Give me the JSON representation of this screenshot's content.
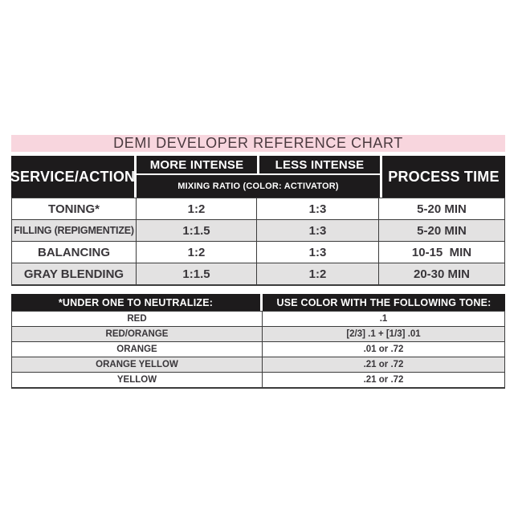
{
  "colors": {
    "pink_banner": "#f8d6de",
    "title_text": "#4b3a3f",
    "header_bg": "#1d1b1c",
    "header_text": "#ffffff",
    "row_alt_gray": "#e3e2e2",
    "body_text": "#39363a",
    "border": "#3c3c3c"
  },
  "chart_data": [
    {
      "type": "table",
      "title": "DEMI DEVELOPER REFERENCE CHART",
      "header": {
        "service_action": "SERVICE/ACTION",
        "more_intense": "MORE INTENSE",
        "less_intense": "LESS INTENSE",
        "mixing_ratio": "MIXING RATIO (COLOR: ACTIVATOR)",
        "process_time": "PROCESS TIME"
      },
      "rows": [
        {
          "service": "TONING*",
          "more_intense": "1:2",
          "less_intense": "1:3",
          "process_time": "5-20 MIN"
        },
        {
          "service": "FILLING (REPIGMENTIZE)",
          "more_intense": "1:1.5",
          "less_intense": "1:3",
          "process_time": "5-20 MIN"
        },
        {
          "service": "BALANCING",
          "more_intense": "1:2",
          "less_intense": "1:3",
          "process_time": "10-15  MIN"
        },
        {
          "service": "GRAY BLENDING",
          "more_intense": "1:1.5",
          "less_intense": "1:2",
          "process_time": "20-30 MIN"
        }
      ]
    },
    {
      "type": "table",
      "header": {
        "neutralize": "*UNDER ONE TO NEUTRALIZE:",
        "use_color": "USE COLOR WITH THE FOLLOWING TONE:"
      },
      "rows": [
        {
          "tone": "RED",
          "formula": ".1"
        },
        {
          "tone": "RED/ORANGE",
          "formula": "[2/3] .1 + [1/3] .01"
        },
        {
          "tone": "ORANGE",
          "formula": ".01 or .72"
        },
        {
          "tone": "ORANGE YELLOW",
          "formula": ".21 or .72"
        },
        {
          "tone": "YELLOW",
          "formula": ".21 or .72"
        }
      ]
    }
  ]
}
